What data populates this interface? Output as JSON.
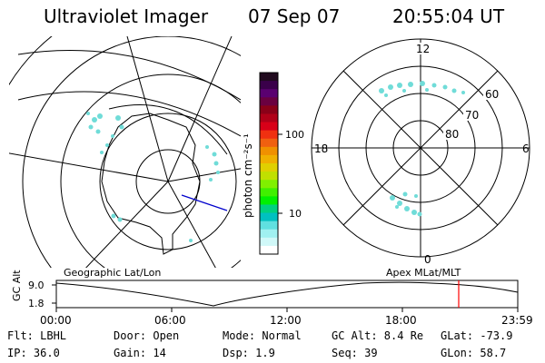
{
  "header": {
    "instrument": "Ultraviolet Imager",
    "date": "07 Sep 07",
    "time": "20:55:04 UT"
  },
  "colorbar": {
    "label": "photon cm⁻²s⁻¹",
    "ticks": [
      "100",
      "10"
    ],
    "colors": [
      "#200a1e",
      "#3a004a",
      "#5a0070",
      "#6a0040",
      "#8a0018",
      "#b00018",
      "#d80018",
      "#f03010",
      "#f06010",
      "#f09000",
      "#f0b000",
      "#e0d000",
      "#c0e000",
      "#80f000",
      "#40f000",
      "#00f000",
      "#00d080",
      "#00c0c0",
      "#60e0e0",
      "#a0f0f0",
      "#d0f8f8",
      "#ffffff"
    ]
  },
  "polar_plot": {
    "lat_labels": [
      "80",
      "70",
      "60"
    ],
    "mlt_labels": {
      "top": "12",
      "bottom": "0",
      "left": "18",
      "right": "6"
    }
  },
  "map_labels": {
    "left": "Geographic Lat/Lon",
    "right": "Apex MLat/MLT"
  },
  "timeline": {
    "axis_label": "GC Alt",
    "y_ticks": [
      "9.0",
      "1.8"
    ],
    "x_ticks": [
      "00:00",
      "06:00",
      "12:00",
      "18:00",
      "23:59"
    ],
    "marker_color": "#ff0000"
  },
  "footer": {
    "row1": [
      "Flt: LBHL",
      "Door: Open",
      "Mode: Normal",
      "GC Alt: 8.4 Re",
      "GLat: -73.9"
    ],
    "row2": [
      "IP: 36.0",
      "Gain: 14",
      "Dsp:    1.9",
      "Seq: 39",
      "GLon:  58.7"
    ]
  }
}
